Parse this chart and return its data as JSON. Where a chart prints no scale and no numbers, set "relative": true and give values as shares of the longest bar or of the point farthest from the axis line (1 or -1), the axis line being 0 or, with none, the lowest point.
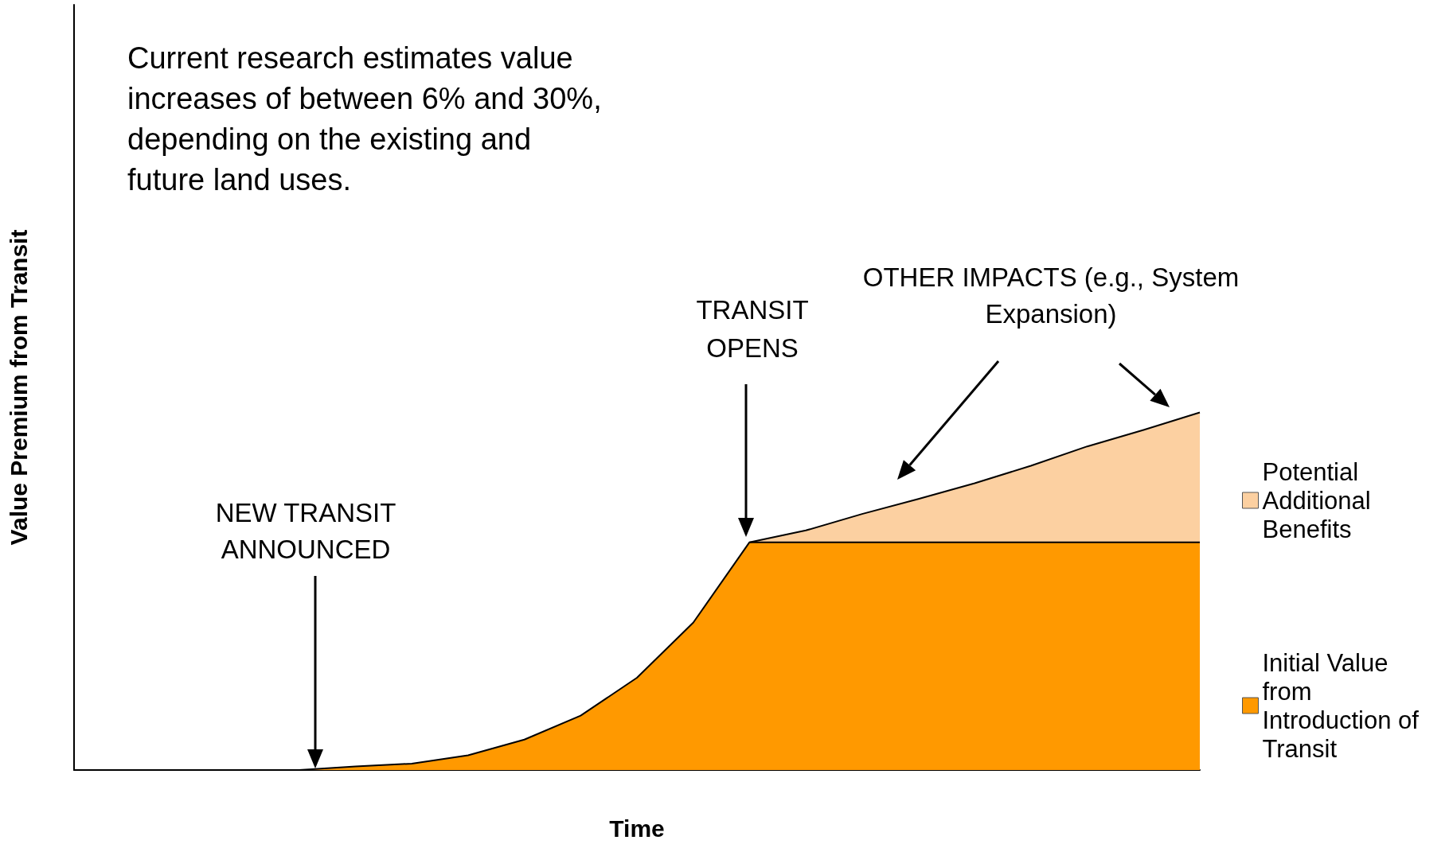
{
  "chart_data": {
    "type": "area",
    "stacked": true,
    "relative": true,
    "xlabel": "Time",
    "ylabel": "Value Premium from Transit",
    "legend": "right",
    "grid": false,
    "marker": "none",
    "line_style": "solid",
    "categories": [
      null,
      null,
      null,
      null,
      null,
      null,
      null,
      null,
      null,
      null,
      null,
      null,
      null,
      null,
      null,
      null,
      null,
      null,
      null,
      null,
      null
    ],
    "series": [
      {
        "name": "Initial Value from Introduction of Transit",
        "color": "#ff9900",
        "values": [
          0,
          0,
          0,
          0,
          0,
          0.01,
          0.018,
          0.041,
          0.085,
          0.152,
          0.258,
          0.412,
          0.637,
          0.637,
          0.637,
          0.637,
          0.637,
          0.637,
          0.637,
          0.637,
          0.637
        ]
      },
      {
        "name": "Potential Additional Benefits",
        "color": "#fcd0a1",
        "values": [
          null,
          null,
          null,
          null,
          null,
          null,
          null,
          null,
          null,
          null,
          null,
          null,
          0,
          0.033,
          0.079,
          0.121,
          0.165,
          0.214,
          0.268,
          0.314,
          0.363
        ]
      }
    ],
    "annotations": [
      "Current research estimates value increases of between 6% and 30%, depending on the existing and future land uses.",
      "NEW TRANSIT ANNOUNCED",
      "TRANSIT OPENS",
      "OTHER IMPACTS (e.g., System Expansion)"
    ]
  }
}
